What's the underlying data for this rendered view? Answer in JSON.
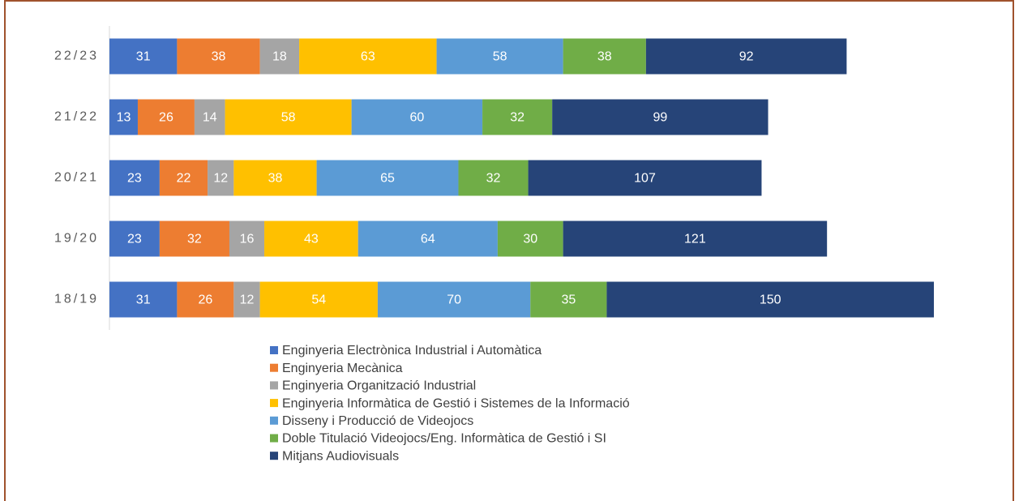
{
  "chart_data": {
    "type": "stacked-bar-horizontal",
    "categories": [
      "22/23",
      "21/22",
      "20/21",
      "19/20",
      "18/19"
    ],
    "series": [
      {
        "name": "Enginyeria Electrònica Industrial i Automàtica",
        "color": "#4472c4",
        "values": [
          31,
          13,
          23,
          23,
          31
        ]
      },
      {
        "name": "Enginyeria Mecànica",
        "color": "#ed7d31",
        "values": [
          38,
          26,
          22,
          32,
          26
        ]
      },
      {
        "name": "Enginyeria Organització Industrial",
        "color": "#a5a5a5",
        "values": [
          18,
          14,
          12,
          16,
          12
        ]
      },
      {
        "name": "Enginyeria Informàtica de Gestió i Sistemes de la Informació",
        "color": "#ffc000",
        "values": [
          63,
          58,
          38,
          43,
          54
        ]
      },
      {
        "name": "Disseny i Producció de Videojocs",
        "color": "#5b9bd5",
        "values": [
          58,
          60,
          65,
          64,
          70
        ]
      },
      {
        "name": "Doble Titulació Videojocs/Eng. Informàtica de Gestió i SI",
        "color": "#70ad47",
        "values": [
          38,
          32,
          32,
          30,
          35
        ]
      },
      {
        "name": "Mitjans Audiovisuals",
        "color": "#264478",
        "values": [
          92,
          99,
          107,
          121,
          150
        ]
      }
    ],
    "legend": "bottom"
  }
}
